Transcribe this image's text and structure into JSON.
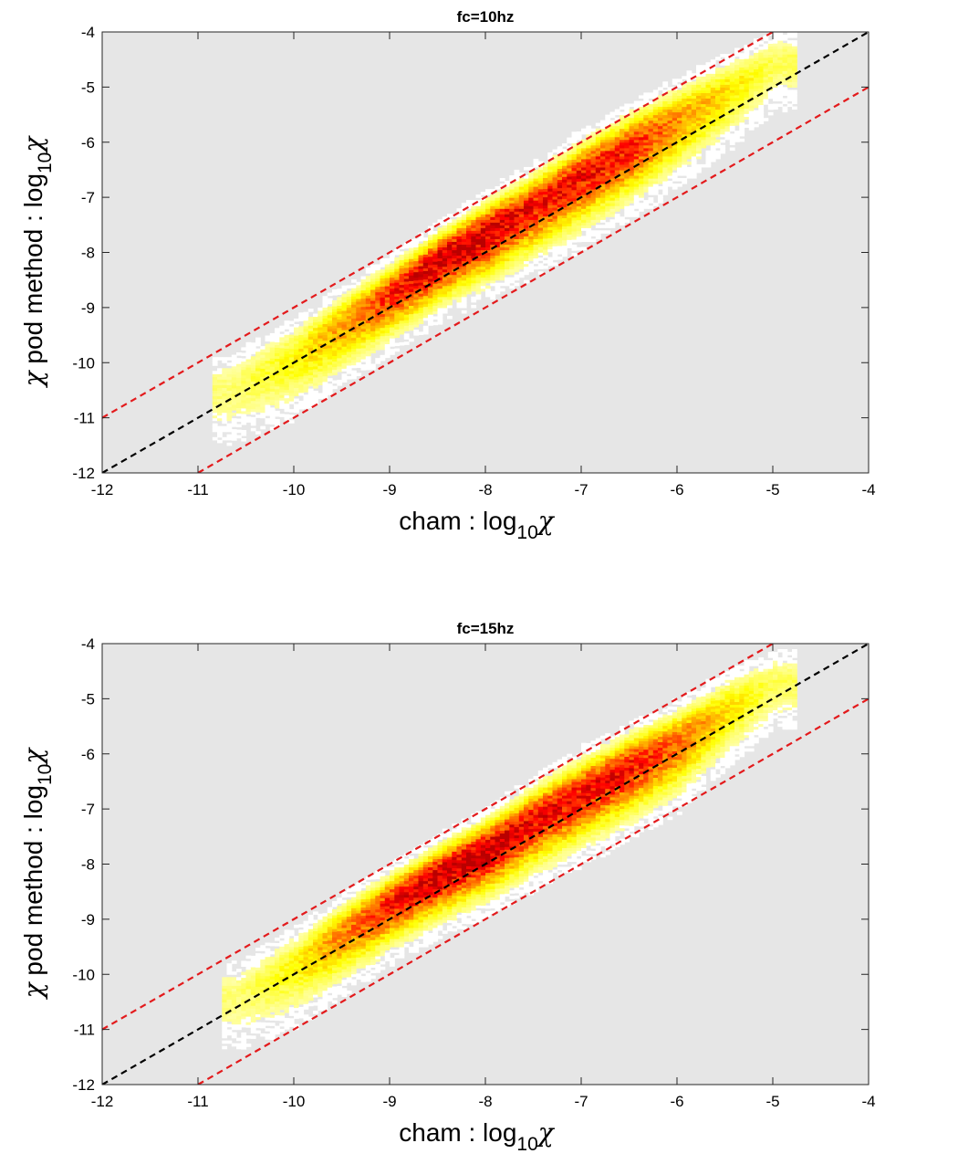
{
  "chart_data": [
    {
      "type": "heatmap",
      "title": "fc=10hz",
      "xlabel_prefix": "cham : log",
      "xlabel_subscript": "10",
      "xlabel_symbol": "χ",
      "ylabel_lead": "χ",
      "ylabel_prefix": " pod method : log",
      "ylabel_subscript": "10",
      "ylabel_symbol": "χ",
      "xlim": [
        -12,
        -4
      ],
      "ylim": [
        -12,
        -4
      ],
      "xticks": [
        "-12",
        "-11",
        "-10",
        "-9",
        "-8",
        "-7",
        "-6",
        "-5",
        "-4"
      ],
      "yticks": [
        "-4",
        "-5",
        "-6",
        "-7",
        "-8",
        "-9",
        "-10",
        "-11",
        "-12"
      ],
      "background_color": "#e6e6e6",
      "colormap": "hot",
      "lines": [
        {
          "kind": "identity",
          "style": "dashed",
          "color": "#000000",
          "points": [
            [
              -12,
              -12
            ],
            [
              -4,
              -4
            ]
          ]
        },
        {
          "kind": "upper bound",
          "style": "dashed",
          "color": "#e31a1c",
          "points": [
            [
              -12,
              -11
            ],
            [
              -5,
              -4
            ]
          ]
        },
        {
          "kind": "lower bound",
          "style": "dashed",
          "color": "#e31a1c",
          "points": [
            [
              -11,
              -12
            ],
            [
              -4,
              -5
            ]
          ]
        }
      ],
      "density_ridge": [
        {
          "x": -10.7,
          "y": -10.5,
          "intensity": 0.12,
          "width": 0.35
        },
        {
          "x": -10.0,
          "y": -9.9,
          "intensity": 0.25,
          "width": 0.35
        },
        {
          "x": -9.5,
          "y": -9.3,
          "intensity": 0.45,
          "width": 0.32
        },
        {
          "x": -9.0,
          "y": -8.75,
          "intensity": 0.7,
          "width": 0.3
        },
        {
          "x": -8.5,
          "y": -8.15,
          "intensity": 0.92,
          "width": 0.3
        },
        {
          "x": -8.0,
          "y": -7.65,
          "intensity": 0.9,
          "width": 0.32
        },
        {
          "x": -7.5,
          "y": -7.15,
          "intensity": 0.75,
          "width": 0.34
        },
        {
          "x": -7.0,
          "y": -6.6,
          "intensity": 0.78,
          "width": 0.35
        },
        {
          "x": -6.5,
          "y": -6.1,
          "intensity": 0.72,
          "width": 0.35
        },
        {
          "x": -6.0,
          "y": -5.6,
          "intensity": 0.45,
          "width": 0.35
        },
        {
          "x": -5.5,
          "y": -5.1,
          "intensity": 0.3,
          "width": 0.33
        },
        {
          "x": -5.0,
          "y": -4.55,
          "intensity": 0.15,
          "width": 0.3
        }
      ]
    },
    {
      "type": "heatmap",
      "title": "fc=15hz",
      "xlabel_prefix": "cham : log",
      "xlabel_subscript": "10",
      "xlabel_symbol": "χ",
      "ylabel_lead": "χ",
      "ylabel_prefix": " pod method : log",
      "ylabel_subscript": "10",
      "ylabel_symbol": "χ",
      "xlim": [
        -12,
        -4
      ],
      "ylim": [
        -12,
        -4
      ],
      "xticks": [
        "-12",
        "-11",
        "-10",
        "-9",
        "-8",
        "-7",
        "-6",
        "-5",
        "-4"
      ],
      "yticks": [
        "-4",
        "-5",
        "-6",
        "-7",
        "-8",
        "-9",
        "-10",
        "-11",
        "-12"
      ],
      "background_color": "#e6e6e6",
      "colormap": "hot",
      "lines": [
        {
          "kind": "identity",
          "style": "dashed",
          "color": "#000000",
          "points": [
            [
              -12,
              -12
            ],
            [
              -4,
              -4
            ]
          ]
        },
        {
          "kind": "upper bound",
          "style": "dashed",
          "color": "#e31a1c",
          "points": [
            [
              -12,
              -11
            ],
            [
              -5,
              -4
            ]
          ]
        },
        {
          "kind": "lower bound",
          "style": "dashed",
          "color": "#e31a1c",
          "points": [
            [
              -11,
              -12
            ],
            [
              -4,
              -5
            ]
          ]
        }
      ],
      "density_ridge": [
        {
          "x": -10.6,
          "y": -10.4,
          "intensity": 0.12,
          "width": 0.35
        },
        {
          "x": -10.0,
          "y": -9.85,
          "intensity": 0.25,
          "width": 0.35
        },
        {
          "x": -9.5,
          "y": -9.25,
          "intensity": 0.5,
          "width": 0.32
        },
        {
          "x": -9.0,
          "y": -8.7,
          "intensity": 0.75,
          "width": 0.3
        },
        {
          "x": -8.5,
          "y": -8.2,
          "intensity": 0.93,
          "width": 0.3
        },
        {
          "x": -8.0,
          "y": -7.75,
          "intensity": 0.92,
          "width": 0.32
        },
        {
          "x": -7.5,
          "y": -7.2,
          "intensity": 0.8,
          "width": 0.34
        },
        {
          "x": -7.0,
          "y": -6.7,
          "intensity": 0.78,
          "width": 0.35
        },
        {
          "x": -6.5,
          "y": -6.25,
          "intensity": 0.75,
          "width": 0.35
        },
        {
          "x": -6.0,
          "y": -5.8,
          "intensity": 0.55,
          "width": 0.35
        },
        {
          "x": -5.5,
          "y": -5.2,
          "intensity": 0.3,
          "width": 0.33
        },
        {
          "x": -5.0,
          "y": -4.7,
          "intensity": 0.15,
          "width": 0.3
        }
      ]
    }
  ]
}
